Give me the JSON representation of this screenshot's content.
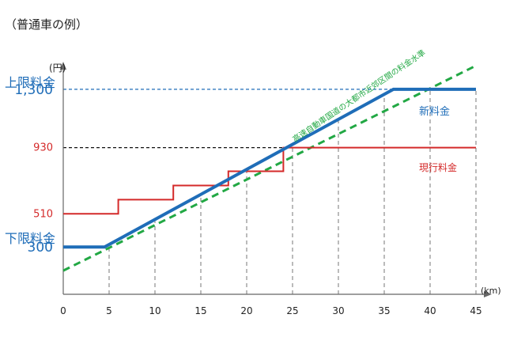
{
  "chart_data": {
    "type": "line",
    "title": "（普通車の例）",
    "y_unit_label": "(円)",
    "x_unit_label": "(km)",
    "xlim": [
      0,
      45
    ],
    "ylim": [
      0,
      1500
    ],
    "x_ticks": [
      0,
      5,
      10,
      15,
      20,
      25,
      30,
      35,
      40,
      45
    ],
    "y_ticks": [
      300,
      510,
      930,
      1300
    ],
    "y_tick_labels": [
      {
        "value": 300,
        "text": "300",
        "color": "#1f6db8",
        "size": "large"
      },
      {
        "value": 510,
        "text": "510",
        "color": "#d42a2a",
        "size": "small"
      },
      {
        "value": 930,
        "text": "930",
        "color": "#d42a2a",
        "size": "small"
      },
      {
        "value": 1300,
        "text": "1,300",
        "color": "#1f6db8",
        "size": "large"
      }
    ],
    "y_annotations": [
      {
        "text": "上限料金",
        "value": 1300,
        "color": "#1f6db8"
      },
      {
        "text": "下限料金",
        "value": 300,
        "color": "#1f6db8"
      }
    ],
    "series": [
      {
        "name": "新料金",
        "color": "#1f6db8",
        "width": 4,
        "style": "solid",
        "x": [
          0,
          4.5,
          36,
          45
        ],
        "y": [
          300,
          300,
          1300,
          1300
        ]
      },
      {
        "name": "現行料金",
        "color": "#d42a2a",
        "width": 2,
        "style": "step",
        "x": [
          0,
          6,
          6,
          12,
          12,
          18,
          18,
          24,
          24,
          45
        ],
        "y": [
          510,
          510,
          600,
          600,
          690,
          690,
          780,
          780,
          930,
          930
        ]
      },
      {
        "name": "高速自動車国道の大都市近郊区間の料金水準",
        "color": "#22a844",
        "width": 3,
        "style": "dashed",
        "x": [
          0,
          45
        ],
        "y": [
          150,
          1450
        ]
      }
    ],
    "reference_lines": [
      {
        "value": 1300,
        "color": "#1f6db8",
        "x_from": 0,
        "x_to": 36
      },
      {
        "value": 930,
        "color": "#111111",
        "x_from": 0,
        "x_to": 24
      }
    ],
    "legend": "inline-labels"
  }
}
